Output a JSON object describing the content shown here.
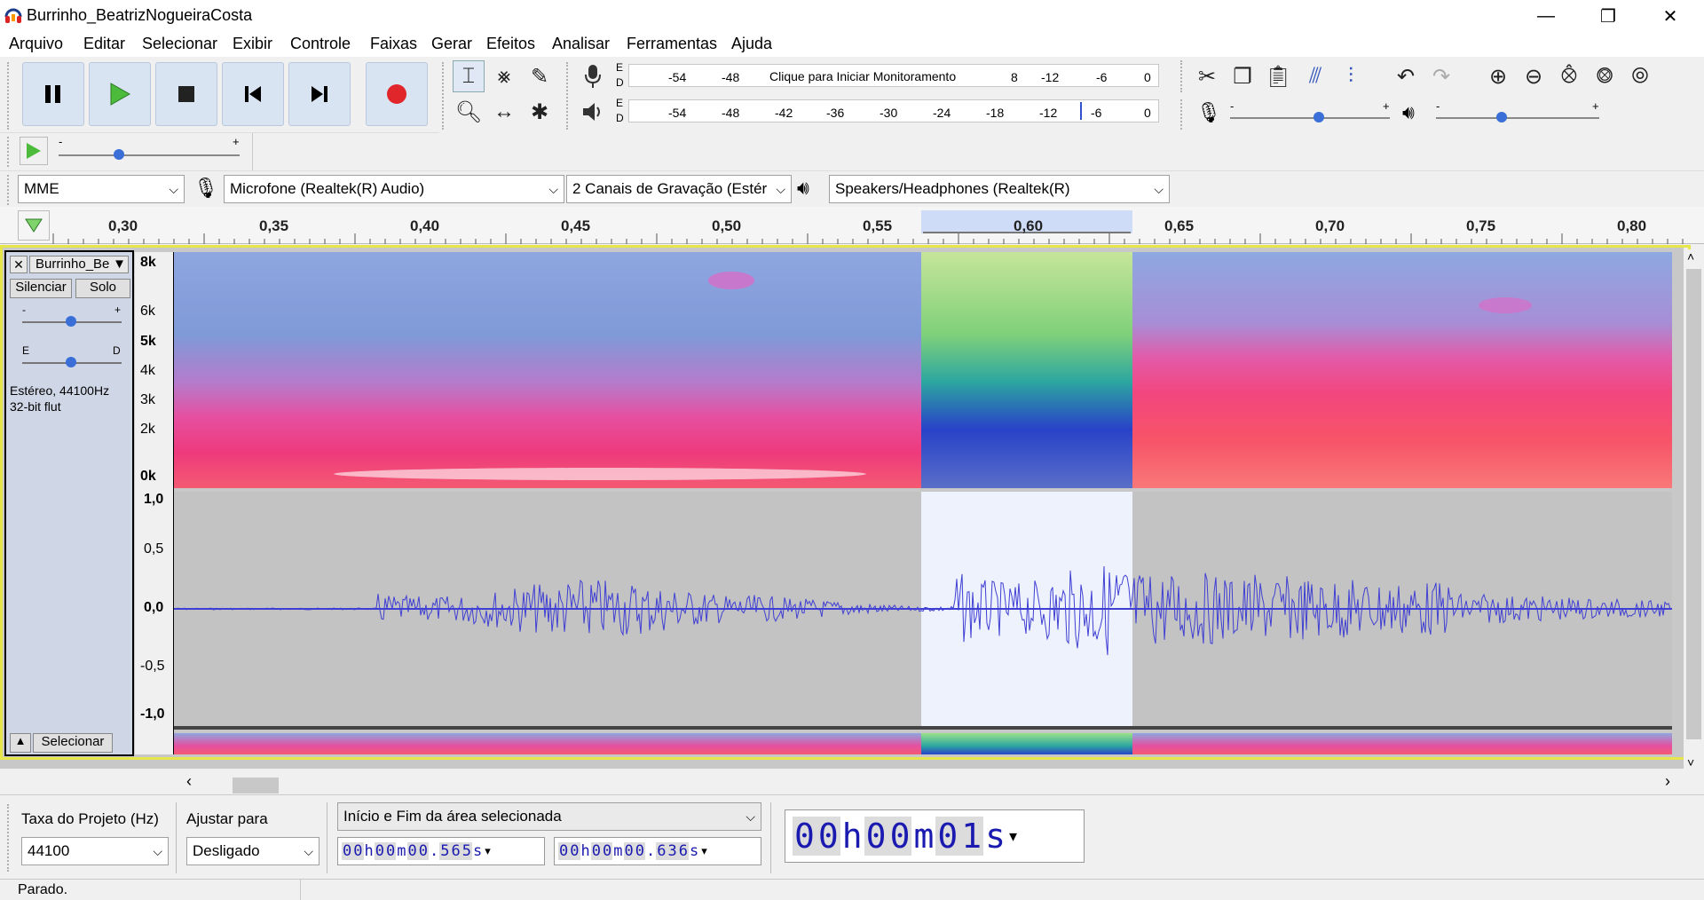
{
  "window": {
    "title": "Burrinho_BeatrizNogueiraCosta"
  },
  "menu": [
    "Arquivo",
    "Editar",
    "Selecionar",
    "Exibir",
    "Controle",
    "Faixas",
    "Gerar",
    "Efeitos",
    "Analisar",
    "Ferramentas",
    "Ajuda"
  ],
  "meters": {
    "record_channels": [
      "E",
      "D"
    ],
    "playback_channels": [
      "E",
      "D"
    ],
    "record_ticks": [
      "-54",
      "-48",
      "8",
      "-12",
      "-6",
      "0"
    ],
    "record_hint": "Clique para Iniciar Monitoramento",
    "play_ticks": [
      "-54",
      "-48",
      "-42",
      "-36",
      "-30",
      "-24",
      "-18",
      "-12",
      "-6",
      "0"
    ]
  },
  "sliders": {
    "minus": "-",
    "plus": "+"
  },
  "devices": {
    "host": "MME",
    "mic": "Microfone (Realtek(R) Audio)",
    "channels": "2 Canais de  Gravação (Estér",
    "speaker": "Speakers/Headphones (Realtek(R)"
  },
  "ruler": {
    "labels": [
      "0,30",
      "0,35",
      "0,40",
      "0,45",
      "0,50",
      "0,55",
      "0,60",
      "0,65",
      "0,70",
      "0,75",
      "0,80"
    ]
  },
  "track": {
    "name": "Burrinho_Be",
    "mute": "Silenciar",
    "solo": "Solo",
    "gain_min": "-",
    "gain_max": "+",
    "pan_left": "E",
    "pan_right": "D",
    "info1": "Estéreo, 44100Hz",
    "info2": "32-bit flut",
    "select": "Selecionar",
    "spec_ticks": [
      "8k",
      "6k",
      "5k",
      "4k",
      "3k",
      "2k",
      "0k"
    ],
    "wave_ticks": [
      "1,0",
      "0,5",
      "0,0",
      "-0,5",
      "-1,0"
    ]
  },
  "selection_bar": {
    "rate_label": "Taxa do Projeto (Hz)",
    "rate_value": "44100",
    "snap_label": "Ajustar para",
    "snap_value": "Desligado",
    "sel_mode": "Início e Fim da área selecionada",
    "start_time": [
      "0",
      "0",
      "h",
      "0",
      "0",
      "m",
      "0",
      "0",
      ".",
      "5",
      "6",
      "5",
      "s"
    ],
    "end_time": [
      "0",
      "0",
      "h",
      "0",
      "0",
      "m",
      "0",
      "0",
      ".",
      "6",
      "3",
      "6",
      "s"
    ],
    "audio_pos": [
      "0",
      "0",
      "h",
      "0",
      "0",
      "m",
      "0",
      "1",
      "s"
    ]
  },
  "status": "Parado.",
  "colors": {
    "selection": "#eef2fc",
    "wave": "#3f3fd4",
    "wave_bg": "#c3c3c3",
    "track_border": "#e6e64a"
  }
}
